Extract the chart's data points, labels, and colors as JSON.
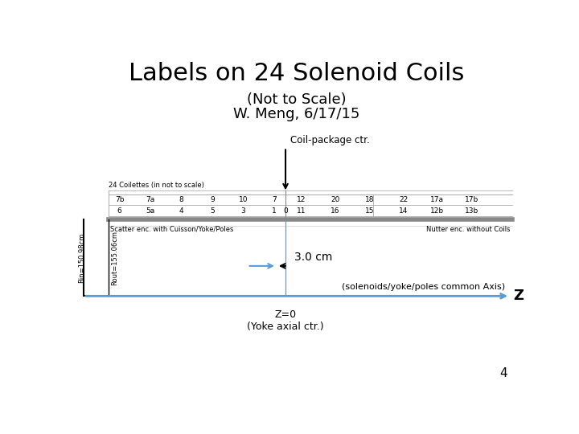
{
  "title": "Labels on 24 Solenoid Coils",
  "subtitle1": "(Not to Scale)",
  "subtitle2": "W. Meng, 6/17/15",
  "coil_pkg_label": "Coil-package ctr.",
  "table_header": "24 Coilettes (in not to scale)",
  "row1": [
    "7b",
    "7a",
    "8",
    "9",
    "10",
    "7",
    "",
    "12",
    "20",
    "18",
    "22",
    "17a",
    "17b"
  ],
  "row2": [
    "6",
    "5a",
    "4",
    "5",
    "3",
    "1",
    "0",
    "11",
    "16",
    "15",
    "14",
    "12b",
    "13b"
  ],
  "scatter_left": "Scatter enc. with Cuisson/Yoke/Poles",
  "scatter_right": "Nutter enc. without Coils",
  "rin_label": "Rin=150.98cm",
  "rout_label": "Rout=155.06cm",
  "dim_label": "3.0 cm",
  "axis_label": "(solenoids/yoke/poles common Axis)",
  "z_label": "Z",
  "z0_label": "Z=0\n(Yoke axial ctr.)",
  "page_num": "4",
  "bg_color": "#ffffff",
  "axis_color": "#5b9bd5",
  "text_color": "#000000",
  "title_fontsize": 22,
  "subtitle_fontsize": 13,
  "body_fontsize": 7
}
